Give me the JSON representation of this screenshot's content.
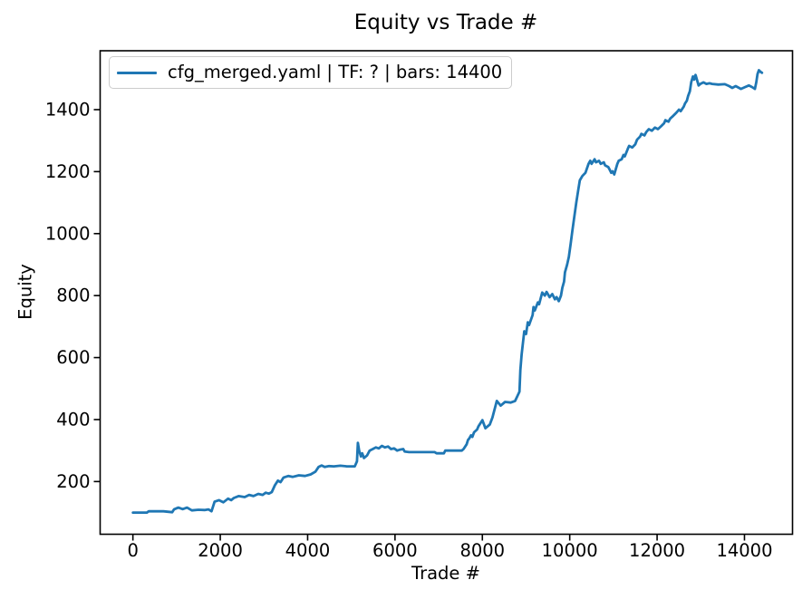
{
  "figure": {
    "background": "#ffffff"
  },
  "legend": {
    "label": "cfg_merged.yaml | TF: ? | bars: 14400",
    "line_color": "#1f77b4"
  },
  "chart_data": {
    "type": "line",
    "title": "Equity vs Trade #",
    "xlabel": "Trade #",
    "ylabel": "Equity",
    "xlim": [
      -750,
      15100
    ],
    "ylim": [
      30,
      1590
    ],
    "x_ticks": [
      0,
      2000,
      4000,
      6000,
      8000,
      10000,
      12000,
      14000
    ],
    "y_ticks": [
      200,
      400,
      600,
      800,
      1000,
      1200,
      1400
    ],
    "grid": false,
    "legend_position": "upper-left",
    "line_color": "#1f77b4",
    "axis_color": "#000000",
    "series": [
      {
        "name": "cfg_merged.yaml | TF: ? | bars: 14400",
        "color": "#1f77b4",
        "points": [
          [
            0,
            100
          ],
          [
            160,
            100
          ],
          [
            320,
            100
          ],
          [
            360,
            104
          ],
          [
            700,
            104
          ],
          [
            900,
            101
          ],
          [
            940,
            110
          ],
          [
            1040,
            116
          ],
          [
            1140,
            111
          ],
          [
            1240,
            116
          ],
          [
            1350,
            107
          ],
          [
            1500,
            109
          ],
          [
            1650,
            108
          ],
          [
            1730,
            110
          ],
          [
            1800,
            104
          ],
          [
            1870,
            135
          ],
          [
            1970,
            140
          ],
          [
            2070,
            133
          ],
          [
            2180,
            145
          ],
          [
            2250,
            140
          ],
          [
            2310,
            147
          ],
          [
            2420,
            153
          ],
          [
            2560,
            150
          ],
          [
            2660,
            157
          ],
          [
            2760,
            153
          ],
          [
            2870,
            160
          ],
          [
            2970,
            157
          ],
          [
            3040,
            164
          ],
          [
            3110,
            161
          ],
          [
            3180,
            166
          ],
          [
            3250,
            188
          ],
          [
            3320,
            203
          ],
          [
            3380,
            198
          ],
          [
            3450,
            213
          ],
          [
            3560,
            218
          ],
          [
            3660,
            215
          ],
          [
            3800,
            220
          ],
          [
            3940,
            218
          ],
          [
            4070,
            223
          ],
          [
            4180,
            232
          ],
          [
            4250,
            247
          ],
          [
            4320,
            252
          ],
          [
            4390,
            247
          ],
          [
            4490,
            250
          ],
          [
            4600,
            249
          ],
          [
            4750,
            251
          ],
          [
            4900,
            249
          ],
          [
            5080,
            249
          ],
          [
            5130,
            265
          ],
          [
            5150,
            325
          ],
          [
            5180,
            300
          ],
          [
            5220,
            281
          ],
          [
            5250,
            291
          ],
          [
            5290,
            276
          ],
          [
            5360,
            284
          ],
          [
            5420,
            300
          ],
          [
            5490,
            305
          ],
          [
            5560,
            310
          ],
          [
            5630,
            307
          ],
          [
            5700,
            315
          ],
          [
            5770,
            310
          ],
          [
            5840,
            313
          ],
          [
            5910,
            305
          ],
          [
            5980,
            307
          ],
          [
            6050,
            300
          ],
          [
            6120,
            303
          ],
          [
            6190,
            305
          ],
          [
            6220,
            297
          ],
          [
            6320,
            295
          ],
          [
            6600,
            295
          ],
          [
            6910,
            295
          ],
          [
            6950,
            291
          ],
          [
            7120,
            291
          ],
          [
            7150,
            300
          ],
          [
            7300,
            300
          ],
          [
            7530,
            300
          ],
          [
            7570,
            305
          ],
          [
            7640,
            320
          ],
          [
            7670,
            334
          ],
          [
            7700,
            339
          ],
          [
            7740,
            349
          ],
          [
            7770,
            344
          ],
          [
            7810,
            359
          ],
          [
            7880,
            368
          ],
          [
            7910,
            378
          ],
          [
            8000,
            398
          ],
          [
            8070,
            372
          ],
          [
            8170,
            384
          ],
          [
            8230,
            407
          ],
          [
            8330,
            460
          ],
          [
            8420,
            445
          ],
          [
            8520,
            457
          ],
          [
            8650,
            455
          ],
          [
            8750,
            460
          ],
          [
            8800,
            475
          ],
          [
            8850,
            490
          ],
          [
            8870,
            560
          ],
          [
            8900,
            610
          ],
          [
            8960,
            685
          ],
          [
            9000,
            676
          ],
          [
            9040,
            714
          ],
          [
            9070,
            705
          ],
          [
            9150,
            737
          ],
          [
            9170,
            763
          ],
          [
            9200,
            752
          ],
          [
            9270,
            778
          ],
          [
            9300,
            772
          ],
          [
            9370,
            810
          ],
          [
            9430,
            800
          ],
          [
            9470,
            812
          ],
          [
            9540,
            795
          ],
          [
            9600,
            805
          ],
          [
            9660,
            788
          ],
          [
            9700,
            795
          ],
          [
            9750,
            782
          ],
          [
            9800,
            800
          ],
          [
            9830,
            825
          ],
          [
            9870,
            845
          ],
          [
            9890,
            875
          ],
          [
            9940,
            900
          ],
          [
            9980,
            925
          ],
          [
            10020,
            965
          ],
          [
            10060,
            1010
          ],
          [
            10100,
            1050
          ],
          [
            10150,
            1100
          ],
          [
            10200,
            1145
          ],
          [
            10230,
            1172
          ],
          [
            10290,
            1186
          ],
          [
            10360,
            1196
          ],
          [
            10430,
            1225
          ],
          [
            10470,
            1235
          ],
          [
            10500,
            1225
          ],
          [
            10570,
            1240
          ],
          [
            10600,
            1230
          ],
          [
            10670,
            1235
          ],
          [
            10710,
            1225
          ],
          [
            10780,
            1230
          ],
          [
            10810,
            1220
          ],
          [
            10880,
            1215
          ],
          [
            10920,
            1205
          ],
          [
            10950,
            1196
          ],
          [
            10980,
            1201
          ],
          [
            11020,
            1191
          ],
          [
            11090,
            1225
          ],
          [
            11120,
            1235
          ],
          [
            11190,
            1240
          ],
          [
            11230,
            1254
          ],
          [
            11260,
            1249
          ],
          [
            11330,
            1274
          ],
          [
            11360,
            1283
          ],
          [
            11430,
            1278
          ],
          [
            11500,
            1288
          ],
          [
            11540,
            1303
          ],
          [
            11610,
            1313
          ],
          [
            11640,
            1322
          ],
          [
            11710,
            1317
          ],
          [
            11750,
            1327
          ],
          [
            11810,
            1337
          ],
          [
            11880,
            1332
          ],
          [
            11950,
            1342
          ],
          [
            12020,
            1337
          ],
          [
            12090,
            1346
          ],
          [
            12160,
            1356
          ],
          [
            12190,
            1366
          ],
          [
            12260,
            1361
          ],
          [
            12300,
            1371
          ],
          [
            12370,
            1380
          ],
          [
            12440,
            1390
          ],
          [
            12500,
            1400
          ],
          [
            12540,
            1395
          ],
          [
            12610,
            1410
          ],
          [
            12640,
            1420
          ],
          [
            12680,
            1429
          ],
          [
            12710,
            1444
          ],
          [
            12750,
            1459
          ],
          [
            12780,
            1488
          ],
          [
            12820,
            1507
          ],
          [
            12850,
            1497
          ],
          [
            12880,
            1512
          ],
          [
            12920,
            1493
          ],
          [
            12950,
            1478
          ],
          [
            12990,
            1483
          ],
          [
            13060,
            1488
          ],
          [
            13130,
            1483
          ],
          [
            13200,
            1485
          ],
          [
            13260,
            1483
          ],
          [
            13400,
            1481
          ],
          [
            13550,
            1482
          ],
          [
            13650,
            1476
          ],
          [
            13720,
            1470
          ],
          [
            13800,
            1476
          ],
          [
            13920,
            1467
          ],
          [
            14000,
            1472
          ],
          [
            14100,
            1478
          ],
          [
            14170,
            1473
          ],
          [
            14240,
            1467
          ],
          [
            14270,
            1488
          ],
          [
            14300,
            1515
          ],
          [
            14330,
            1527
          ],
          [
            14370,
            1522
          ],
          [
            14400,
            1519
          ]
        ]
      }
    ]
  }
}
